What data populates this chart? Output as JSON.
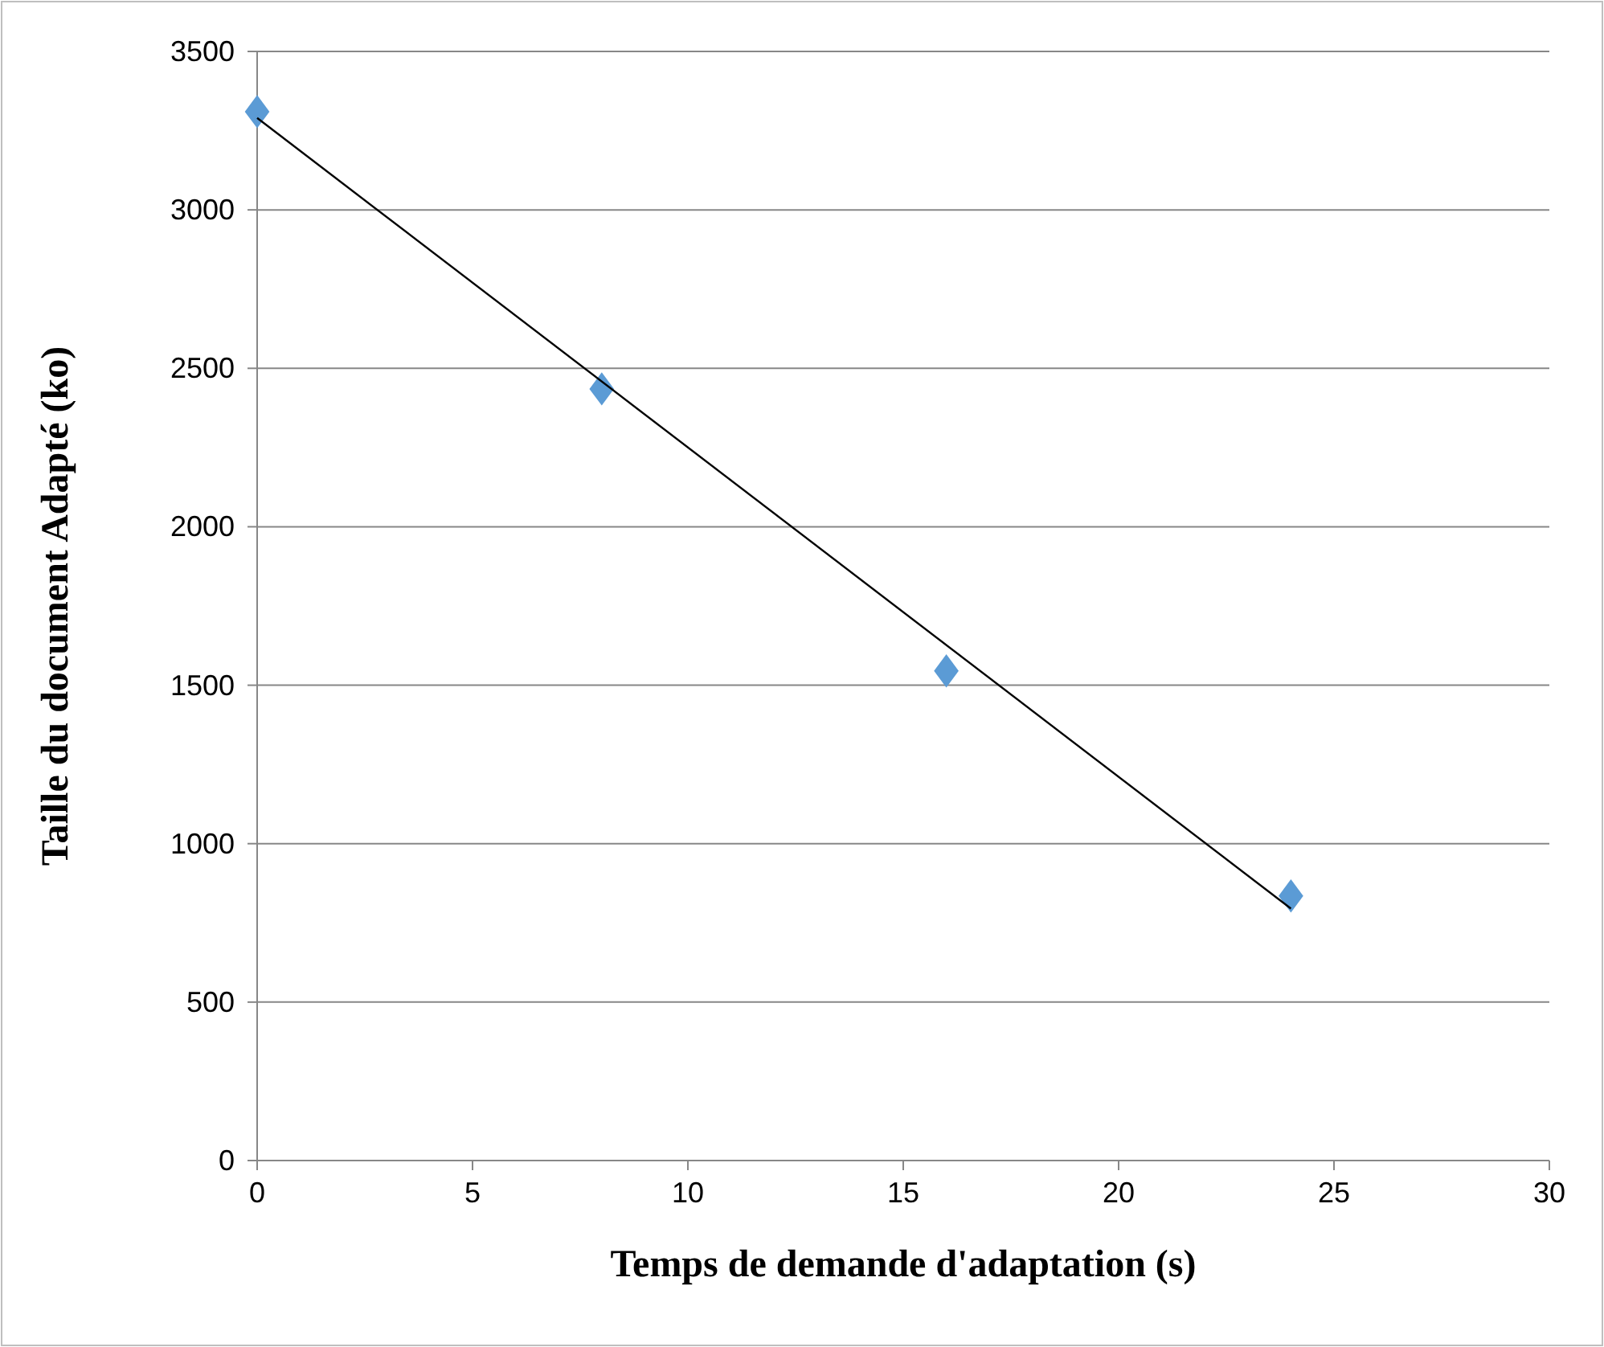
{
  "chart_data": {
    "type": "scatter",
    "xlabel": "Temps de demande d'adaptation (s)",
    "ylabel": "Taille du document Adapté (ko)",
    "x": [
      0,
      8,
      16,
      24
    ],
    "series": [
      {
        "color": "#5b9bd5",
        "values": [
          3310,
          2435,
          1545,
          835
        ],
        "marker": "diamond"
      },
      {
        "type": "line",
        "color": "#000000",
        "x": [
          0,
          24
        ],
        "values": [
          3290,
          795
        ],
        "marker": "none"
      }
    ],
    "xlim": [
      0,
      30
    ],
    "xticks": [
      0,
      5,
      10,
      15,
      20,
      25,
      30
    ],
    "ylim": [
      0,
      3500
    ],
    "yticks": [
      0,
      500,
      1000,
      1500,
      2000,
      2500,
      3000,
      3500
    ],
    "grid": "y"
  }
}
